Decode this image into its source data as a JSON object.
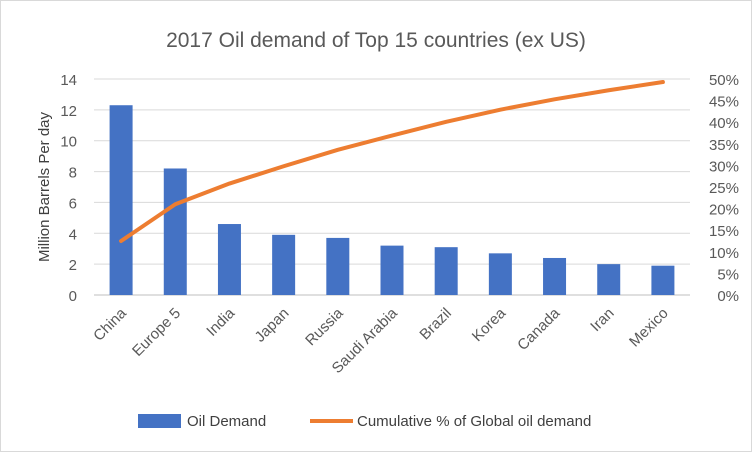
{
  "chart_data": {
    "type": "bar",
    "title": "2017 Oil demand of Top 15 countries (ex US)",
    "ylabel": "Million Barrels Per day",
    "xlabel": "",
    "categories": [
      "China",
      "Europe 5",
      "India",
      "Japan",
      "Russia",
      "Saudi Arabia",
      "Brazil",
      "Korea",
      "Canada",
      "Iran",
      "Mexico"
    ],
    "ylim": [
      0,
      14
    ],
    "y_ticks": [
      0,
      2,
      4,
      6,
      8,
      10,
      12,
      14
    ],
    "y2lim": [
      0,
      50
    ],
    "y2_ticks": [
      "0%",
      "5%",
      "10%",
      "15%",
      "20%",
      "25%",
      "30%",
      "35%",
      "40%",
      "45%",
      "50%"
    ],
    "grid": true,
    "legend_position": "bottom",
    "series": [
      {
        "name": "Oil Demand",
        "type": "bar",
        "axis": "left",
        "color": "#4472c4",
        "values": [
          12.3,
          8.2,
          4.6,
          3.9,
          3.7,
          3.2,
          3.1,
          2.7,
          2.4,
          2.0,
          1.9
        ]
      },
      {
        "name": "Cumulative % of Global oil demand",
        "type": "line",
        "axis": "right",
        "unit": "%",
        "color": "#ed7d31",
        "values": [
          12.5,
          21.0,
          25.8,
          29.8,
          33.6,
          36.9,
          40.1,
          42.9,
          45.3,
          47.4,
          49.3
        ]
      }
    ]
  }
}
